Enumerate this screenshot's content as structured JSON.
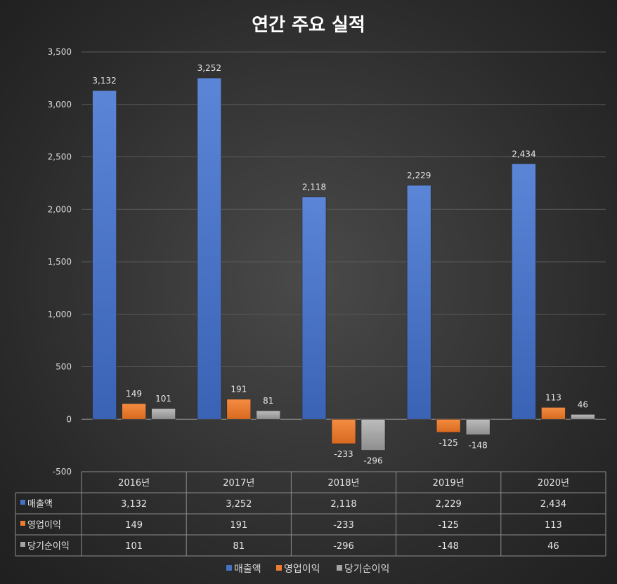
{
  "chart_data": {
    "type": "bar",
    "title": "연간 주요 실적",
    "categories": [
      "2016년",
      "2017년",
      "2018년",
      "2019년",
      "2020년"
    ],
    "series": [
      {
        "name": "매출액",
        "color": "#4472c4",
        "values": [
          3132,
          3252,
          2118,
          2229,
          2434
        ]
      },
      {
        "name": "영업이익",
        "color": "#ed7d31",
        "values": [
          149,
          191,
          -233,
          -125,
          113
        ]
      },
      {
        "name": "당기순이익",
        "color": "#a5a5a5",
        "values": [
          101,
          81,
          -296,
          -148,
          46
        ]
      }
    ],
    "ylim": [
      -500,
      3500
    ],
    "yticks": [
      3500,
      3000,
      2500,
      2000,
      1500,
      1000,
      500,
      0,
      -500
    ],
    "ytick_labels": [
      "3,500",
      "3,000",
      "2,500",
      "2,000",
      "1,500",
      "1,000",
      "500",
      "0",
      "-500"
    ],
    "data_labels": [
      [
        "3,132",
        "3,252",
        "2,118",
        "2,229",
        "2,434"
      ],
      [
        "149",
        "191",
        "-233",
        "-125",
        "113"
      ],
      [
        "101",
        "81",
        "-296",
        "-148",
        "46"
      ]
    ],
    "grid": true,
    "legend": "bottom",
    "data_table": true
  }
}
